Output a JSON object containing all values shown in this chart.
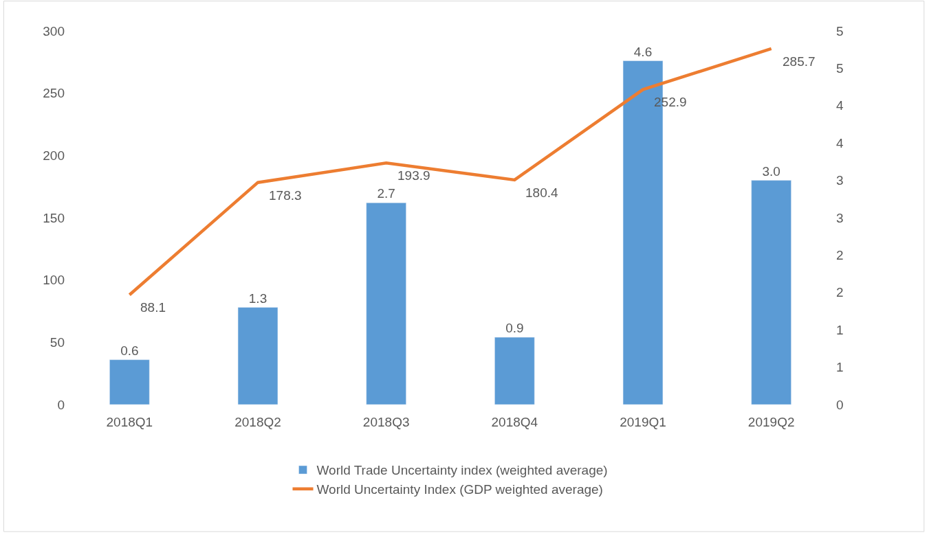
{
  "chart_data": {
    "type": "bar",
    "categories": [
      "2018Q1",
      "2018Q2",
      "2018Q3",
      "2018Q4",
      "2019Q1",
      "2019Q2"
    ],
    "series": [
      {
        "name": "World Trade Uncertainty index (weighted average)",
        "axis": "y2",
        "color": "#5b9bd5",
        "values": [
          0.6,
          1.3,
          2.7,
          0.9,
          4.6,
          3.0
        ],
        "value_labels": [
          "0.6",
          "1.3",
          "2.7",
          "0.9",
          "4.6",
          "3.0"
        ]
      },
      {
        "name": "World Uncertainty Index (GDP weighted average)",
        "type": "line",
        "axis": "y",
        "color": "#ed7d31",
        "values": [
          88.1,
          178.3,
          193.9,
          180.4,
          252.9,
          285.7
        ],
        "value_labels": [
          "88.1",
          "178.3",
          "193.9",
          "180.4",
          "252.9",
          "285.7"
        ]
      }
    ],
    "ylim": [
      0,
      300
    ],
    "yticks": [
      0,
      50,
      100,
      150,
      200,
      250,
      300
    ],
    "y2lim": [
      0,
      5
    ],
    "y2ticks": [
      0,
      {
        "value": 0.5,
        "label": "1"
      },
      1,
      {
        "value": 1.5,
        "label": "2"
      },
      2,
      {
        "value": 2.5,
        "label": "3"
      },
      3,
      {
        "value": 3.5,
        "label": "4"
      },
      4,
      {
        "value": 4.5,
        "label": "5"
      },
      5
    ],
    "grid": false,
    "legend": "bottom",
    "marker": "none",
    "line_style": "solid"
  }
}
